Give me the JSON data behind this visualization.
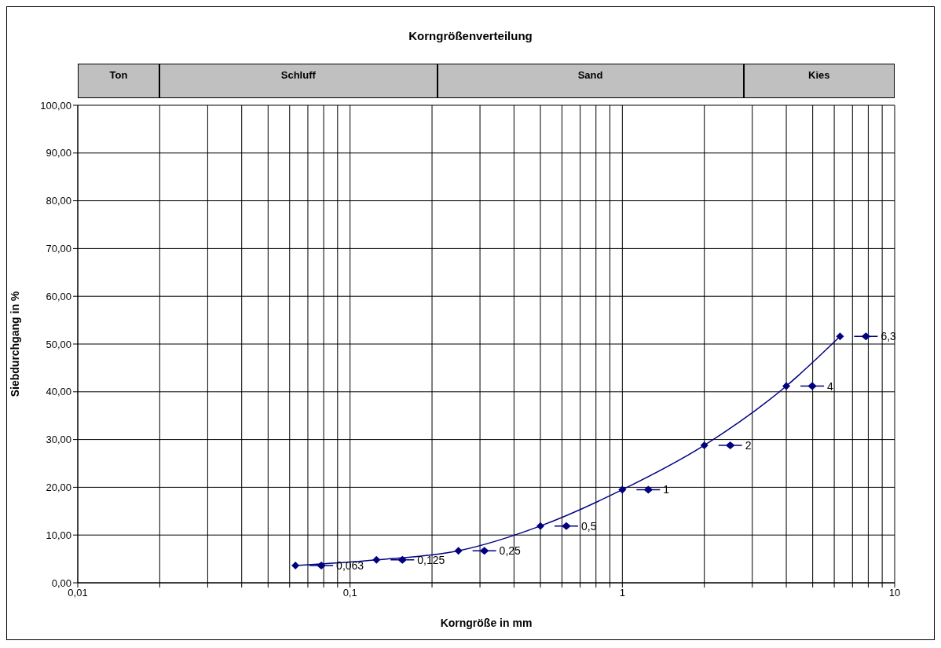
{
  "chart_data": {
    "type": "line",
    "title": "Korngrößenverteilung",
    "xlabel": "Korngröße in mm",
    "ylabel": "Siebdurchgang in %",
    "x": [
      0.063,
      0.125,
      0.25,
      0.5,
      1,
      2,
      4,
      6.3
    ],
    "values": [
      3.6,
      4.8,
      6.7,
      11.9,
      19.5,
      28.8,
      41.2,
      51.6
    ],
    "color": "#000080",
    "marker": "diamond",
    "line_style": "solid",
    "log": "x",
    "grid": true,
    "xlim": [
      0.01,
      10
    ],
    "xticks": [
      {
        "value": 0.01,
        "label": "0,01"
      },
      {
        "value": 0.02,
        "label": null
      },
      {
        "value": 0.03,
        "label": null
      },
      {
        "value": 0.04,
        "label": null
      },
      {
        "value": 0.05,
        "label": null
      },
      {
        "value": 0.06,
        "label": null
      },
      {
        "value": 0.07,
        "label": null
      },
      {
        "value": 0.08,
        "label": null
      },
      {
        "value": 0.09,
        "label": null
      },
      {
        "value": 0.1,
        "label": "0,1"
      },
      {
        "value": 0.2,
        "label": null
      },
      {
        "value": 0.3,
        "label": null
      },
      {
        "value": 0.4,
        "label": null
      },
      {
        "value": 0.5,
        "label": null
      },
      {
        "value": 0.6,
        "label": null
      },
      {
        "value": 0.7,
        "label": null
      },
      {
        "value": 0.8,
        "label": null
      },
      {
        "value": 0.9,
        "label": null
      },
      1,
      {
        "value": 2,
        "label": null
      },
      {
        "value": 3,
        "label": null
      },
      {
        "value": 4,
        "label": null
      },
      {
        "value": 5,
        "label": null
      },
      {
        "value": 6,
        "label": null
      },
      {
        "value": 7,
        "label": null
      },
      {
        "value": 8,
        "label": null
      },
      {
        "value": 9,
        "label": null
      },
      10
    ],
    "ylim": [
      0,
      100
    ],
    "yticks": [
      {
        "value": 0,
        "label": "0,00"
      },
      {
        "value": 10,
        "label": "10,00"
      },
      {
        "value": 20,
        "label": "20,00"
      },
      {
        "value": 30,
        "label": "30,00"
      },
      {
        "value": 40,
        "label": "40,00"
      },
      {
        "value": 50,
        "label": "50,00"
      },
      {
        "value": 60,
        "label": "60,00"
      },
      {
        "value": 70,
        "label": "70,00"
      },
      {
        "value": 80,
        "label": "80,00"
      },
      {
        "value": 90,
        "label": "90,00"
      },
      {
        "value": 100,
        "label": "100,00"
      }
    ],
    "annotations": [
      "Ton",
      "Schluff",
      "Sand",
      "Kies",
      "0,063",
      "0,125",
      "0,25",
      "0,5",
      "1",
      "2",
      "4",
      "6,3"
    ]
  }
}
